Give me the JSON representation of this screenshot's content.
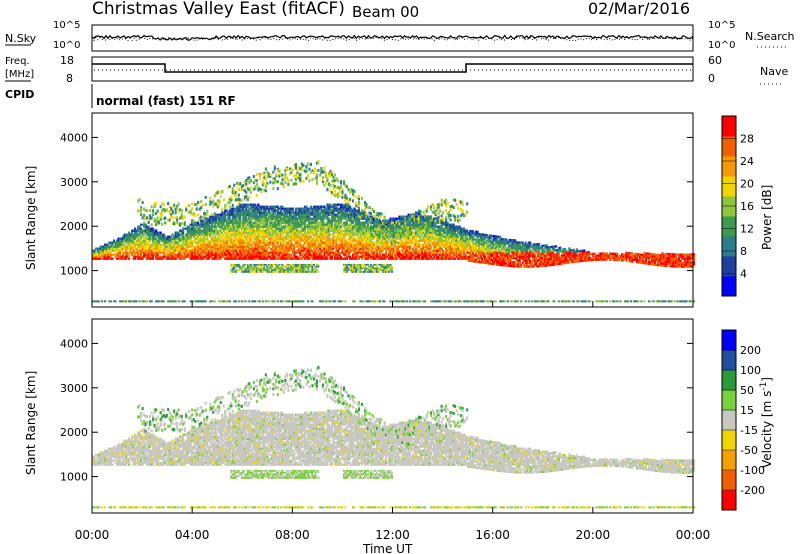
{
  "header": {
    "title": "Christmas Valley East (fitACF)",
    "beam": "Beam 00",
    "date": "02/Mar/2016"
  },
  "mini_panels": {
    "nsky_label": "N.Sky",
    "nsky_ticks": [
      "10^5",
      "10^0"
    ],
    "nsearch_label": "N.Search",
    "nsearch_ticks": [
      "10^5",
      "10^0"
    ],
    "freq_label_1": "Freq.",
    "freq_label_2": "[MHz]",
    "freq_ticks": [
      "18",
      "8"
    ],
    "nave_label": "Nave",
    "nave_ticks": [
      "60",
      "0"
    ],
    "cpid_label": "CPID",
    "cpid_value": "normal (fast) 151 RF"
  },
  "chart_data": [
    {
      "type": "heatmap",
      "panel": "power",
      "xlabel": "Time UT",
      "ylabel": "Slant Range [km]",
      "x_ticks": [
        "00:00",
        "04:00",
        "08:00",
        "12:00",
        "16:00",
        "20:00",
        "00:00"
      ],
      "xlim_hours": [
        0,
        24
      ],
      "ylim_km": [
        180,
        4550
      ],
      "y_ticks": [
        1000,
        2000,
        3000,
        4000
      ],
      "colorbar_label": "Power [dB]",
      "colorbar_ticks": [
        "28",
        "24",
        "20",
        "16",
        "12",
        "8",
        "4"
      ],
      "colors": [
        "#0000ff",
        "#1e3f9e",
        "#2a7d8a",
        "#3f9a4d",
        "#8cc63f",
        "#f2d400",
        "#f59a00",
        "#f06000",
        "#ff0000"
      ],
      "ranges_km": {
        "main_band": [
          [
            0,
            1450
          ],
          [
            1,
            1700
          ],
          [
            2,
            2050
          ],
          [
            3,
            1750
          ],
          [
            4,
            2050
          ],
          [
            6,
            2500
          ],
          [
            8,
            2400
          ],
          [
            10,
            2500
          ],
          [
            11.5,
            2100
          ],
          [
            13,
            2300
          ],
          [
            15,
            1900
          ],
          [
            17,
            1650
          ],
          [
            20,
            1400
          ],
          [
            24,
            1350
          ]
        ],
        "lower_patch_1": [
          [
            5.5,
            1050
          ],
          [
            9.0,
            1050
          ]
        ],
        "lower_patch_2": [
          [
            10.0,
            1050
          ],
          [
            12.0,
            1050
          ]
        ],
        "upper_arcs": [
          [
            2,
            2300
          ],
          [
            4,
            2300
          ],
          [
            7,
            3100
          ],
          [
            9,
            3250
          ],
          [
            10,
            2800
          ],
          [
            12,
            1850
          ],
          [
            14,
            2400
          ]
        ]
      }
    },
    {
      "type": "heatmap",
      "panel": "velocity",
      "xlabel": "Time UT",
      "ylabel": "Slant Range [km]",
      "x_ticks": [
        "00:00",
        "04:00",
        "08:00",
        "12:00",
        "16:00",
        "20:00",
        "00:00"
      ],
      "xlim_hours": [
        0,
        24
      ],
      "ylim_km": [
        180,
        4550
      ],
      "y_ticks": [
        1000,
        2000,
        3000,
        4000
      ],
      "colorbar_label": "Velocity [m s^-1]",
      "colorbar_ticks": [
        "200",
        "100",
        "50",
        "15",
        "-15",
        "-50",
        "-100",
        "-200"
      ],
      "colors": [
        "#ff0000",
        "#f06000",
        "#f5a000",
        "#f2d400",
        "#c8c8c0",
        "#7ad03c",
        "#2a9a3a",
        "#1e4fa0",
        "#0000ff"
      ]
    }
  ]
}
